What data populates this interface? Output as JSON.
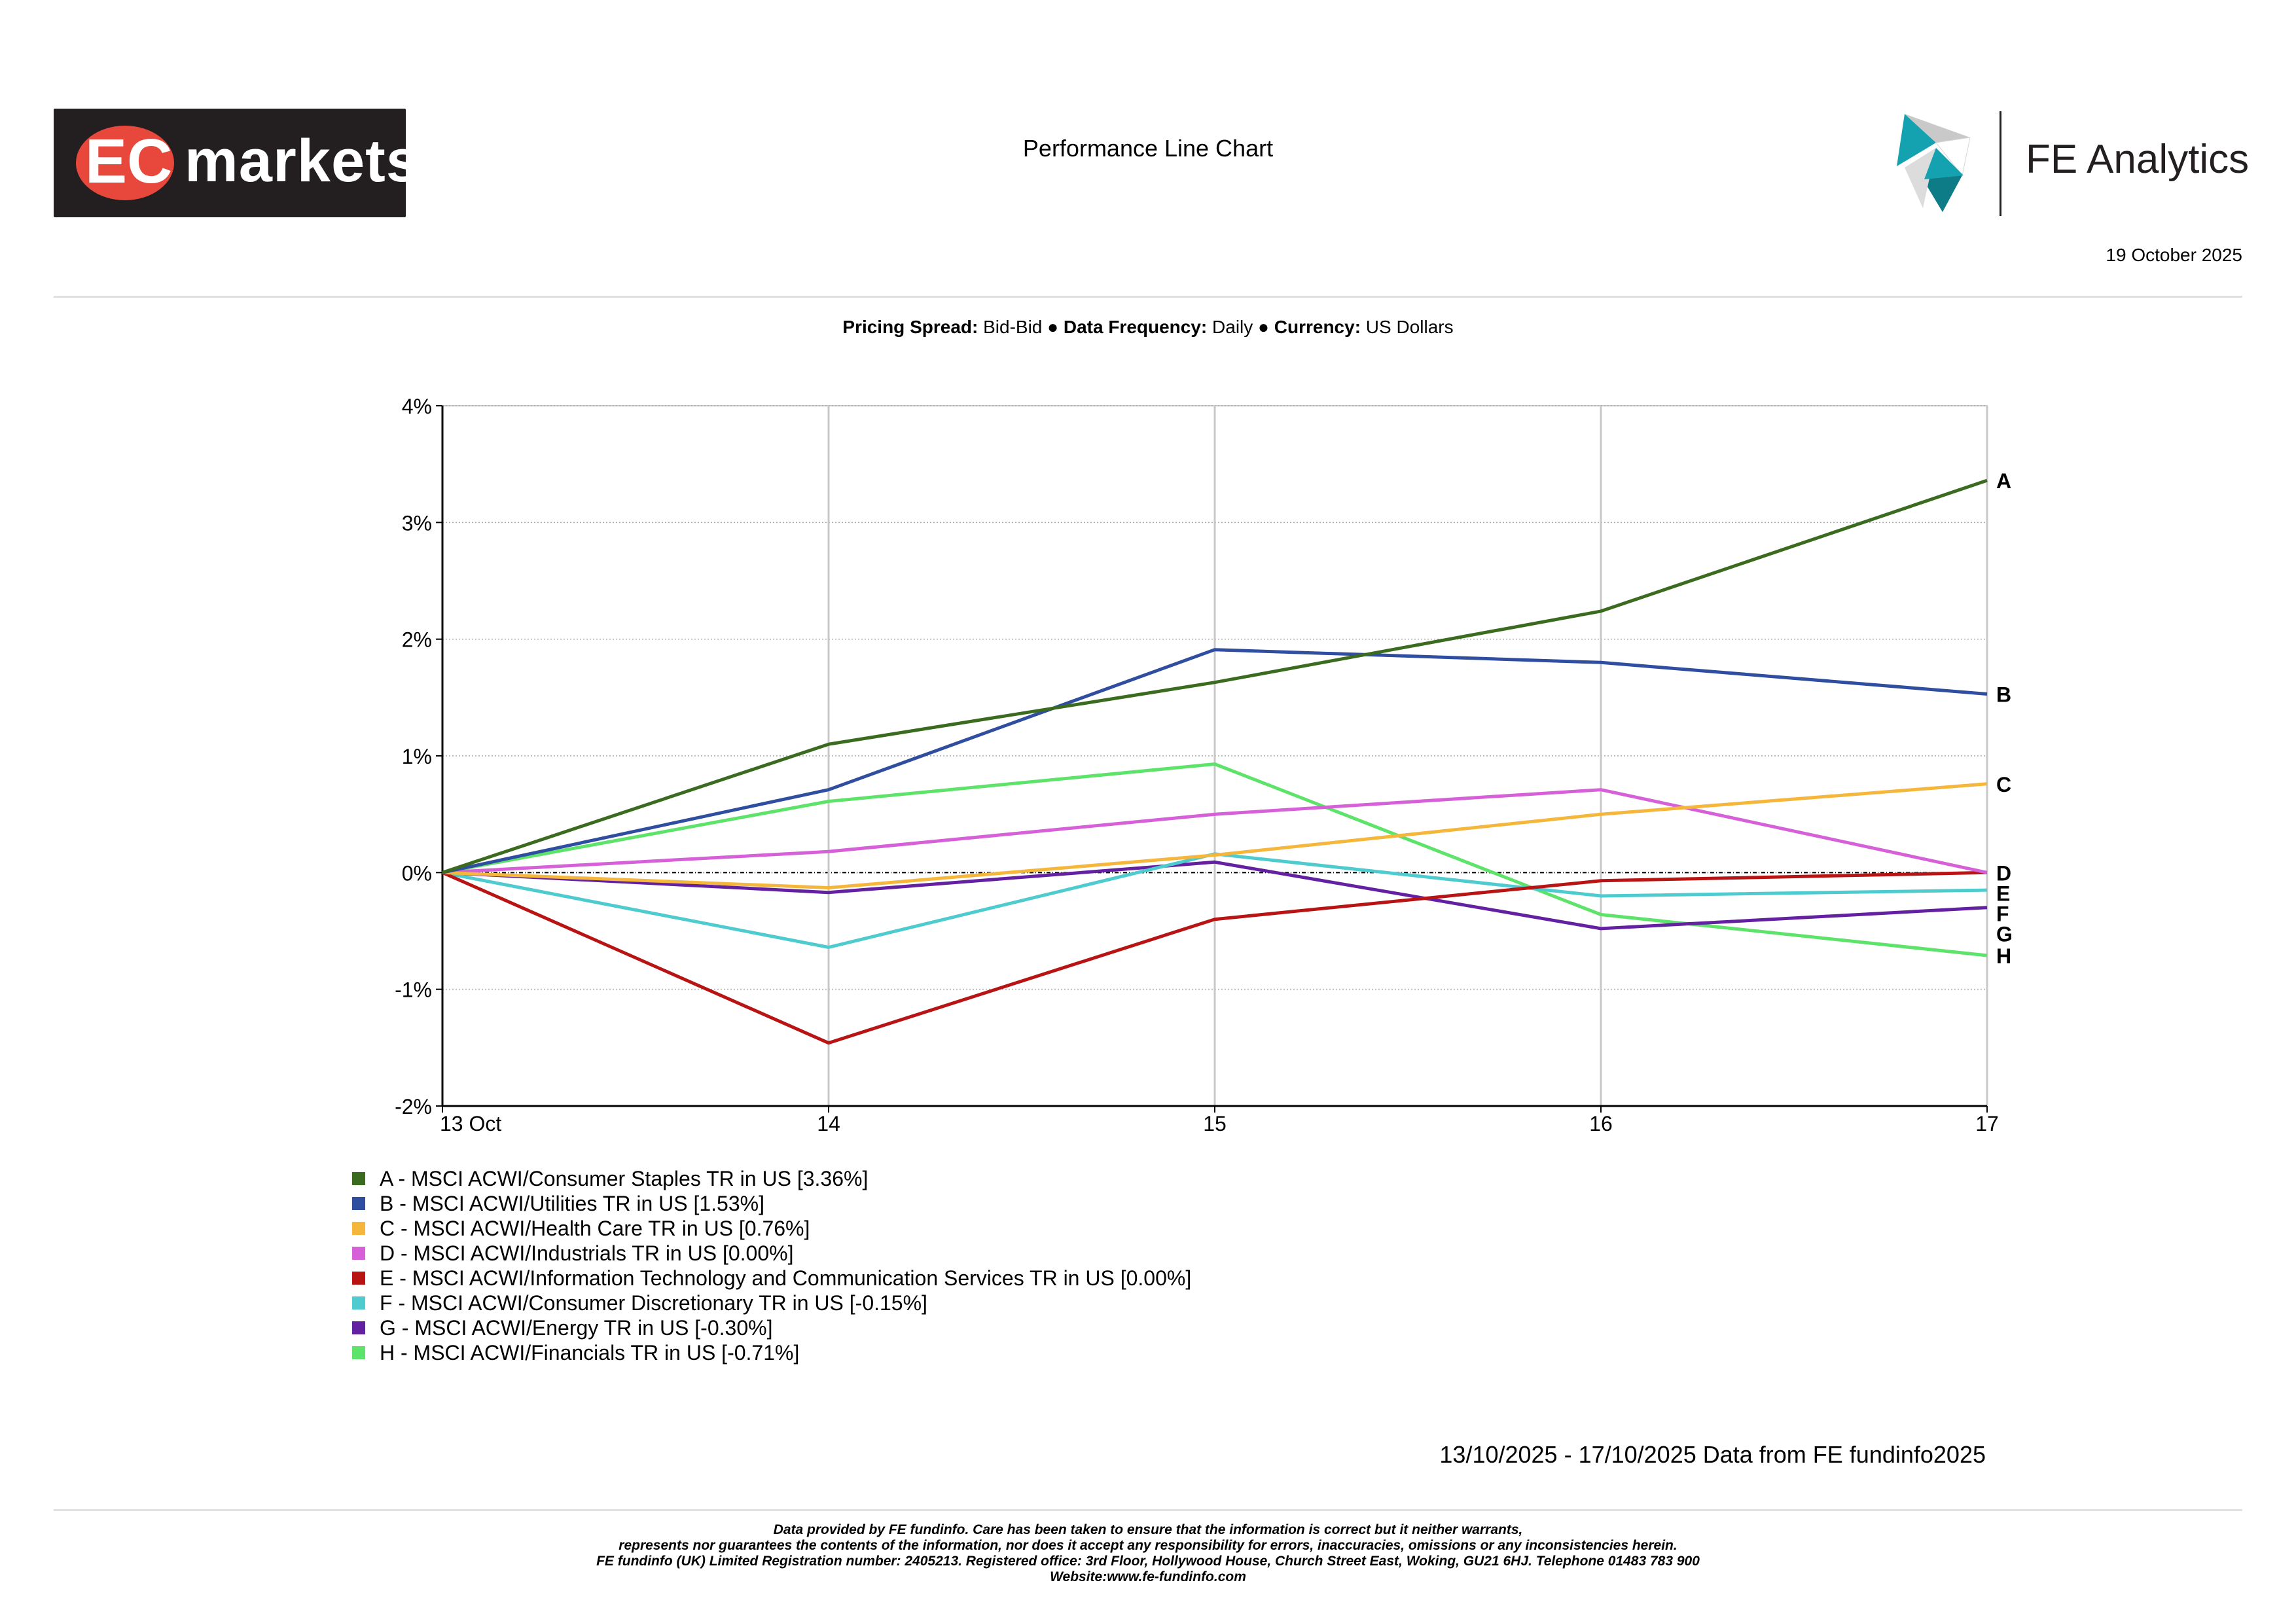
{
  "header": {
    "logo_left": {
      "text_a": "EC",
      "text_b": "markets",
      "bg_color": "#231f20",
      "accent_color": "#e8473c"
    },
    "title": "Performance Line Chart",
    "logo_right": {
      "name": "FE Analytics",
      "icon": "fe-triangle-logo",
      "colors": [
        "#14a2b0",
        "#c9c9c9",
        "#0e7c86"
      ]
    },
    "date": "19 October 2025"
  },
  "meta": {
    "pricing_spread_label": "Pricing Spread:",
    "pricing_spread_value": "Bid-Bid",
    "data_frequency_label": "Data Frequency:",
    "data_frequency_value": "Daily",
    "currency_label": "Currency:",
    "currency_value": "US Dollars",
    "separator": "●"
  },
  "chart_data": {
    "type": "line",
    "title": "",
    "xlabel": "",
    "ylabel": "",
    "x": [
      "13 Oct",
      "14",
      "15",
      "16",
      "17"
    ],
    "ylim": [
      -2,
      4
    ],
    "yticks": [
      4,
      3,
      2,
      1,
      0,
      -1,
      -2
    ],
    "ytick_labels": [
      "4%",
      "3%",
      "2%",
      "1%",
      "0%",
      "-1%",
      "-2%"
    ],
    "grid": true,
    "legend_position": "bottom-left",
    "series": [
      {
        "letter": "A",
        "name": "A - MSCI ACWI/Consumer Staples TR in US [3.36%]",
        "color": "#3a6b1e",
        "values": [
          0,
          1.1,
          1.63,
          2.24,
          3.36
        ]
      },
      {
        "letter": "B",
        "name": "B - MSCI ACWI/Utilities TR in US [1.53%]",
        "color": "#2f4e9f",
        "values": [
          0,
          0.71,
          1.91,
          1.8,
          1.53
        ]
      },
      {
        "letter": "C",
        "name": "C - MSCI ACWI/Health Care TR in US [0.76%]",
        "color": "#f5b63c",
        "values": [
          0,
          -0.13,
          0.15,
          0.5,
          0.76
        ]
      },
      {
        "letter": "D",
        "name": "D - MSCI ACWI/Industrials TR in US [0.00%]",
        "color": "#d660d8",
        "values": [
          0,
          0.18,
          0.5,
          0.71,
          0.0
        ]
      },
      {
        "letter": "E",
        "name": "E - MSCI ACWI/Information Technology and Communication Services TR in US [0.00%]",
        "color": "#b81414",
        "values": [
          0,
          -1.46,
          -0.4,
          -0.07,
          0.0
        ]
      },
      {
        "letter": "F",
        "name": "F - MSCI ACWI/Consumer Discretionary TR in US [-0.15%]",
        "color": "#4ecbcf",
        "values": [
          0,
          -0.64,
          0.16,
          -0.2,
          -0.15
        ]
      },
      {
        "letter": "G",
        "name": "G - MSCI ACWI/Energy TR in US [-0.30%]",
        "color": "#6320a0",
        "values": [
          0,
          -0.17,
          0.09,
          -0.48,
          -0.3
        ]
      },
      {
        "letter": "H",
        "name": "H - MSCI ACWI/Financials TR in US [-0.71%]",
        "color": "#5de36a",
        "values": [
          0,
          0.61,
          0.93,
          -0.36,
          -0.71
        ]
      }
    ],
    "source_note": "13/10/2025 - 17/10/2025 Data from FE fundinfo2025"
  },
  "disclaimer": {
    "line1": "Data provided by FE fundinfo. Care has been taken to ensure that the information is correct but it neither warrants,",
    "line2": "represents nor guarantees the contents of the information, nor does it accept any responsibility for errors, inaccuracies, omissions or any inconsistencies herein.",
    "line3": "FE fundinfo (UK) Limited Registration number: 2405213. Registered office: 3rd Floor, Hollywood House, Church Street East, Woking, GU21 6HJ. Telephone 01483 783 900",
    "line4": "Website:www.fe-fundinfo.com"
  }
}
